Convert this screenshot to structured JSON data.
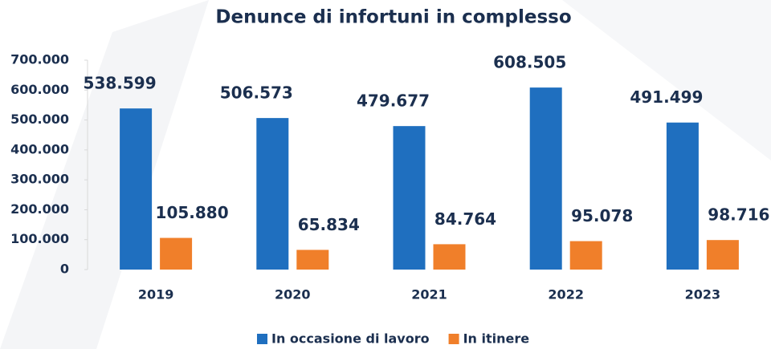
{
  "chart_data": {
    "type": "bar",
    "title": "Denunce di infortuni in complesso",
    "categories": [
      "2019",
      "2020",
      "2021",
      "2022",
      "2023"
    ],
    "series": [
      {
        "name": "In occasione di lavoro",
        "color": "#1f6fbf",
        "values": [
          538599,
          506573,
          479677,
          608505,
          491499
        ],
        "value_labels": [
          "538.599",
          "506.573",
          "479.677",
          "608.505",
          "491.499"
        ]
      },
      {
        "name": "In itinere",
        "color": "#f07f2a",
        "values": [
          105880,
          65834,
          84764,
          95078,
          98716
        ],
        "value_labels": [
          "105.880",
          "65.834",
          "84.764",
          "95.078",
          "98.716"
        ]
      }
    ],
    "ylim": [
      0,
      700000
    ],
    "yticks": [
      0,
      {
        "value": 100000,
        "label": "100.000"
      },
      {
        "value": 200000,
        "label": "200.000"
      },
      {
        "value": 300000,
        "label": "300.000"
      },
      {
        "value": 400000,
        "label": "400.000"
      },
      {
        "value": 500000,
        "label": "500.000"
      },
      {
        "value": 600000,
        "label": "600.000"
      },
      {
        "value": 700000,
        "label": "700.000"
      }
    ],
    "legend": "bottom"
  }
}
